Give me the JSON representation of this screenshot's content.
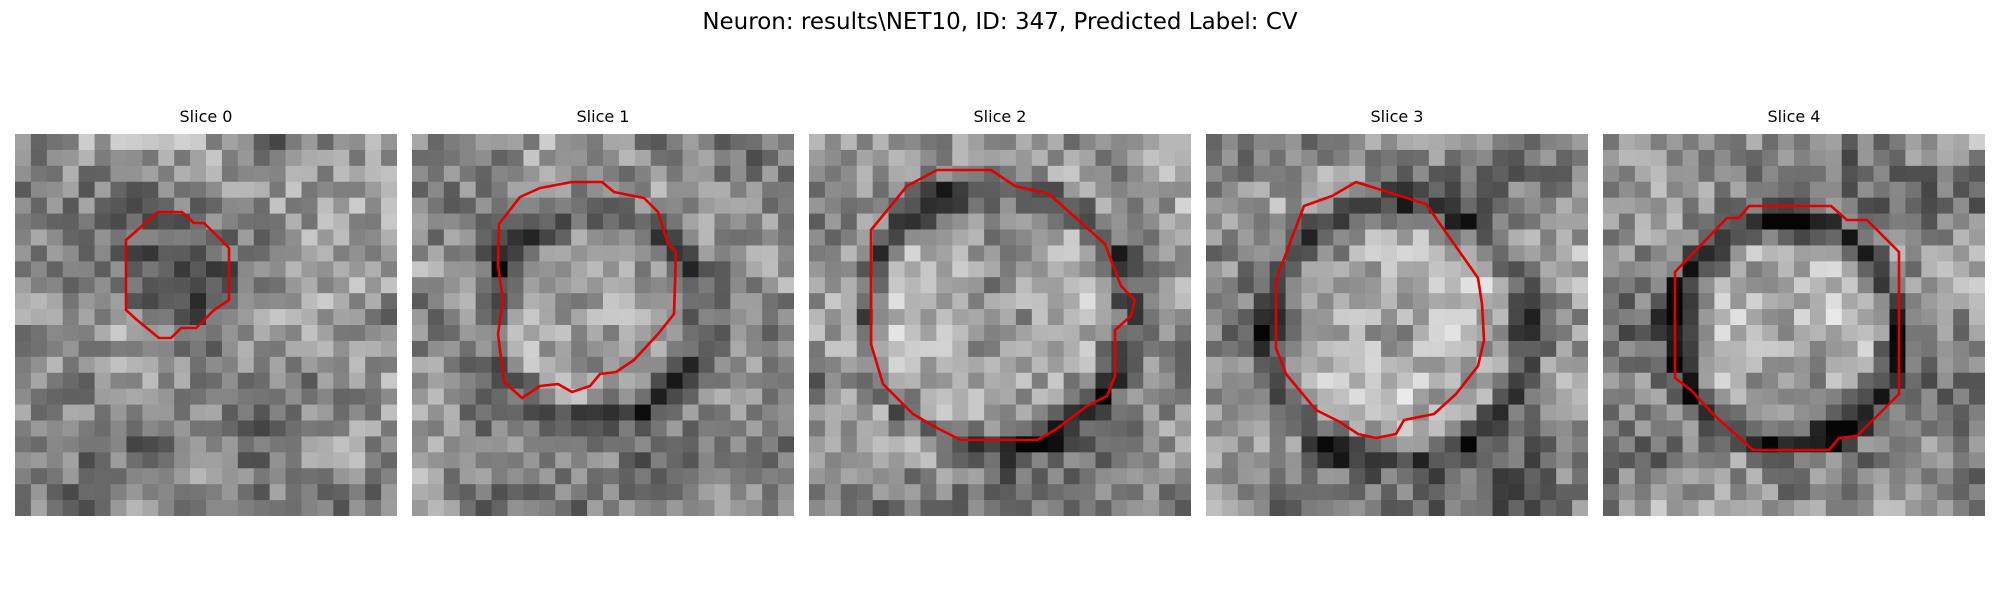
{
  "figure": {
    "title": "Neuron: results\\NET10, ID: 347, Predicted Label: CV",
    "contour_color": "#e00000",
    "cmap": "gray",
    "slices": [
      {
        "title": "Slice 0"
      },
      {
        "title": "Slice 1"
      },
      {
        "title": "Slice 2"
      },
      {
        "title": "Slice 3"
      },
      {
        "title": "Slice 4"
      }
    ]
  }
}
